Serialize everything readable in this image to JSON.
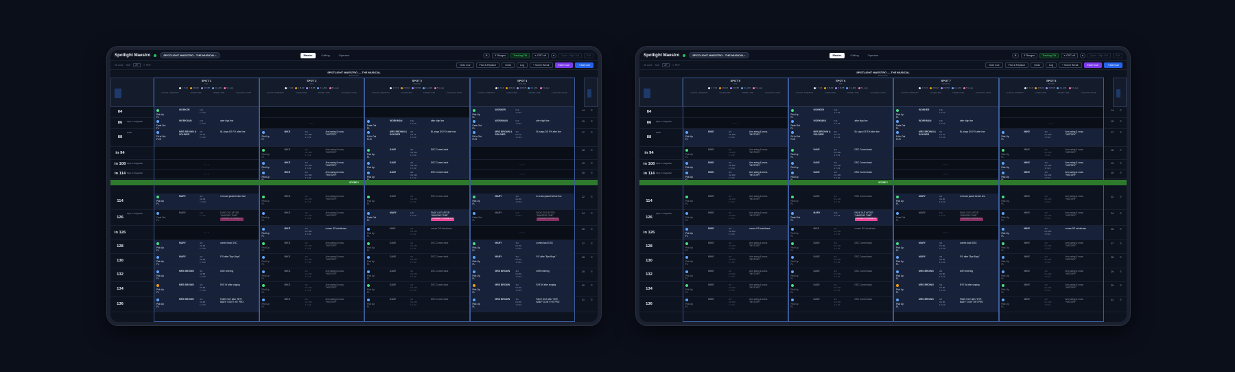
{
  "app": {
    "brand": "Spotlight Maestro",
    "show_pill": "SPOTLIGHT MAESTRO · THE MUSICAL ‹",
    "modes": [
      "Master",
      "Calling",
      "Operator"
    ],
    "active_mode": "Master",
    "controls": {
      "ranges": "↺ Ranges",
      "tracking": "Tracking ON",
      "osc": "✕ OSC off",
      "open": "Open · Sign Out",
      "exit": "Exit"
    }
  },
  "toolbar": {
    "count": "26 cues",
    "sort_label": "Sort",
    "font": "A+",
    "pdf": "⇩ PDF",
    "buttons": [
      "Goto Cue",
      "Find & Replace",
      "Undo",
      "Log",
      "+ Scene Break"
    ],
    "insert": "Insert Cue",
    "add": "+ Add Cue"
  },
  "show_header": {
    "title": "SPOTLIGHT MAESTRO — THE MUSICAL",
    "subtitle": "World Tour"
  },
  "columns": {
    "action": "ACTION / INTENSITY",
    "character": "CHARACTER",
    "frame": "FRAME / SIZE",
    "desc": "LOCATION / NOTE"
  },
  "frames": [
    {
      "label": "1 Y-13",
      "color": "#e2e8f0"
    },
    {
      "label": "2 R-02",
      "color": "#f59e0b"
    },
    {
      "label": "3 R-58",
      "color": "#a78bfa"
    },
    {
      "label": "4 L-201",
      "color": "#60a5fa"
    },
    {
      "label": "5 L-Lav",
      "color": "#f472b6"
    }
  ],
  "left_tablet": {
    "spots": [
      {
        "name": "SPOT 1",
        "sub": "FLY"
      },
      {
        "name": "SPOT 2",
        "sub": "FLY"
      },
      {
        "name": "SPOT 3",
        "sub": "HOUSE"
      },
      {
        "name": "SPOT 4",
        "sub": "HOUSE"
      }
    ]
  },
  "right_tablet": {
    "spots": [
      {
        "name": "SPOT 5",
        "sub": "PIT"
      },
      {
        "name": "SPOT 6",
        "sub": "PIT"
      },
      {
        "name": "SPOT 7",
        "sub": "BOOTH"
      },
      {
        "name": "SPOT 8",
        "sub": "BOOTH"
      }
    ]
  },
  "cell_off": "OFF",
  "scene_label": "SCENE 2",
  "rows": [
    {
      "cue": "84",
      "note": "",
      "idx": "14"
    },
    {
      "cue": "86",
      "note": "Spot 1-4 together",
      "idx": "15"
    },
    {
      "cue": "88",
      "note": "wider",
      "idx": "17"
    },
    {
      "cue": "in 94",
      "note": "",
      "idx": "18"
    },
    {
      "cue": "in 108",
      "note": "Spot 2-3 together",
      "idx": "19"
    },
    {
      "cue": "in 114",
      "note": "Spot 2-3 together",
      "idx": "20"
    },
    {
      "cue": "114",
      "note": "",
      "idx": "22"
    },
    {
      "cue": "126",
      "note": "Spot 1-4 together",
      "idx": "24"
    },
    {
      "cue": "in 126",
      "note": "",
      "idx": "26"
    },
    {
      "cue": "128",
      "note": "",
      "idx": "27"
    },
    {
      "cue": "130",
      "note": "",
      "idx": "28"
    },
    {
      "cue": "132",
      "note": "",
      "idx": "29"
    },
    {
      "cue": "134",
      "note": "",
      "idx": "30"
    },
    {
      "cue": "136",
      "note": "",
      "idx": "31"
    }
  ],
  "cells": {
    "workman": {
      "act": "Pick Up\nFL",
      "tgt": "WORKER",
      "sz": "Full\n1 Y-13",
      "desc": ""
    },
    "fade": {
      "act": "Fade Out\nFL",
      "tgt": "WORKMAN",
      "sz": "Full\n1 Y-13",
      "desc": "after high line"
    },
    "miss": {
      "act": "Fd In Out\nFL/S",
      "tgt": "MRS BROWN & SOLDIER",
      "sz": "3/4\nIris 70\n1 Y-13",
      "desc": "BL slaps DS\nF/X after line"
    },
    "mike": {
      "act": "Pick Up\nFL",
      "tgt": "MIKE",
      "sz": "3/4\nIris 100\n1 Y-13",
      "desc": "Arm swing & cross \"HISTORY\""
    },
    "dave": {
      "act": "Pick Up\nFL",
      "tgt": "DAVE",
      "sz": "3/4\nIris 100\n1 Y-13",
      "desc": "DSC\nComes back"
    },
    "mary": {
      "act": "Pick Up\nFL",
      "tgt": "MARY",
      "sz": "3/4\nIris 90\n1 Y-13",
      "desc": "in brown jacket before line"
    },
    "fadeout": {
      "act": "Fade Out\nFL",
      "tgt": "MARY",
      "sz": "Full\n1 Y-13",
      "desc": "FADE OUT AFTER \"AMAZING TIME\"",
      "tag": "CHANGE TO FRAME 2-4"
    },
    "mike2": {
      "act": "Pick Up\nFL",
      "tgt": "MIKE",
      "sz": "3/4\nIris 100\n1 Y-13",
      "desc": "comes DS w/suitcase"
    },
    "mary2": {
      "act": "Pick Up\nFL",
      "tgt": "MARY",
      "sz": "3/4\nIris 90\n1 Y-13",
      "desc": "comes back DSC"
    },
    "mary3": {
      "act": "Pick Up\nFL",
      "tgt": "MARY",
      "sz": "3/4\nIris 90\n1 Y-13",
      "desc": "F/X after \"Bye Boys\""
    },
    "brown": {
      "act": "Pick Up\nFL",
      "tgt": "MRS BROWN",
      "sz": "3/4\nIris 80\n1 Y-13",
      "desc": "DSR\nentering"
    },
    "brown2": {
      "act": "Pick Up\nFL",
      "tgt": "MRS BROWN",
      "sz": "3/4\nIris 80\n1 Y-13",
      "desc": "BYE W after singing"
    },
    "brown3": {
      "act": "Pick Up\nFL",
      "tgt": "MRS BROWN",
      "sz": "3/4\nIris 80\n1 Y-13",
      "desc": "FADE OUT after \"BYE BABY\" DON'T HIT PRO"
    }
  }
}
